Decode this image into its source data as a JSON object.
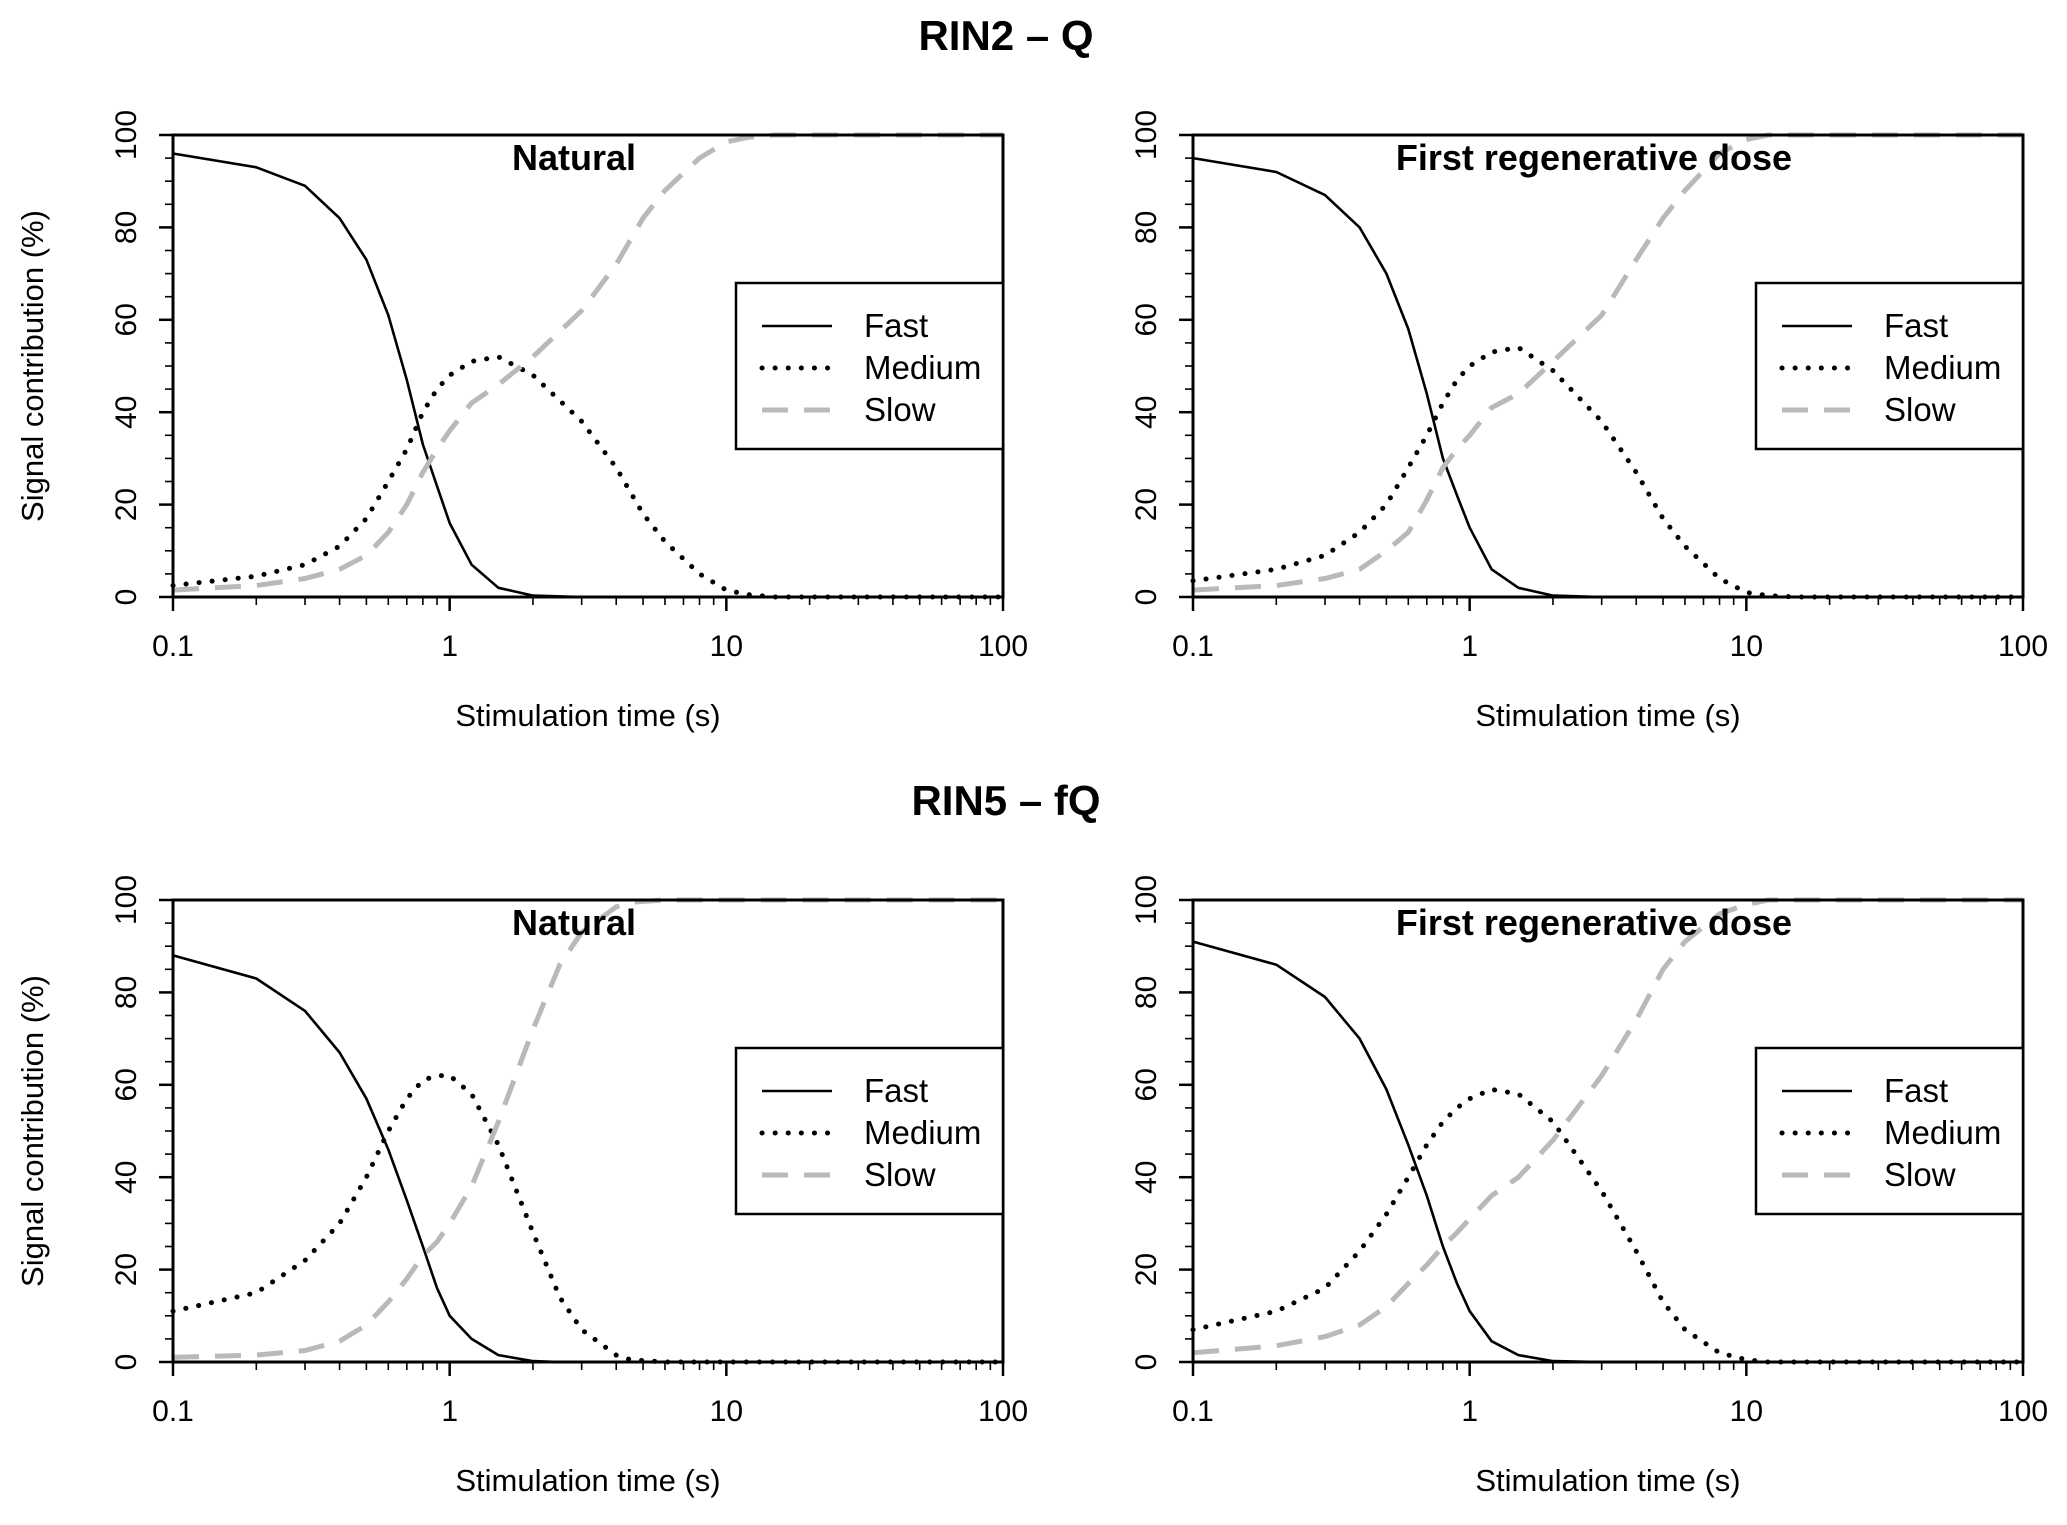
{
  "groups": [
    {
      "title": "RIN2 – Q"
    },
    {
      "title": "RIN5 – fQ"
    }
  ],
  "colors": {
    "fast": "#000000",
    "medium": "#000000",
    "slow": "#b9b9b9"
  },
  "chart_data": [
    {
      "type": "line",
      "group": 0,
      "title": "Natural",
      "xlabel": "Stimulation time (s)",
      "ylabel": "Signal contribution (%)",
      "xscale": "log",
      "xlim": [
        0.1,
        100
      ],
      "ylim": [
        0,
        100
      ],
      "xticks": [
        0.1,
        1,
        10,
        100
      ],
      "xtick_labels": [
        "0.1",
        "1",
        "10",
        "100"
      ],
      "yticks": [
        0,
        20,
        40,
        60,
        80,
        100
      ],
      "ytick_labels": [
        "0",
        "20",
        "40",
        "60",
        "80",
        "100"
      ],
      "legend": {
        "position": "right",
        "entries": [
          "Fast",
          "Medium",
          "Slow"
        ]
      },
      "x": [
        0.1,
        0.2,
        0.3,
        0.4,
        0.5,
        0.6,
        0.7,
        0.8,
        0.9,
        1,
        1.2,
        1.5,
        2,
        3,
        4,
        5,
        6,
        8,
        10,
        12,
        15,
        20,
        30,
        50,
        100
      ],
      "series": [
        {
          "name": "Fast",
          "values": [
            96,
            93,
            89,
            82,
            73,
            61,
            47,
            33,
            24,
            16,
            7,
            2,
            0.3,
            0,
            0,
            0,
            0,
            0,
            0,
            0,
            0,
            0,
            0,
            0,
            0
          ]
        },
        {
          "name": "Medium",
          "values": [
            2.5,
            4.5,
            7,
            11,
            17,
            25,
            32,
            40,
            45,
            48,
            51,
            52,
            48,
            38,
            28,
            18,
            12,
            5,
            1.5,
            0.5,
            0,
            0,
            0,
            0,
            0
          ]
        },
        {
          "name": "Slow",
          "values": [
            1.5,
            2.5,
            4,
            6,
            9,
            14,
            20,
            27,
            32,
            36,
            42,
            46,
            52,
            62,
            72,
            82,
            88,
            95,
            98.5,
            99.5,
            100,
            100,
            100,
            100,
            100
          ]
        }
      ]
    },
    {
      "type": "line",
      "group": 0,
      "title": "First regenerative dose",
      "xlabel": "Stimulation time (s)",
      "ylabel": "Signal contribution (%)",
      "xscale": "log",
      "xlim": [
        0.1,
        100
      ],
      "ylim": [
        0,
        100
      ],
      "xticks": [
        0.1,
        1,
        10,
        100
      ],
      "xtick_labels": [
        "0.1",
        "1",
        "10",
        "100"
      ],
      "yticks": [
        0,
        20,
        40,
        60,
        80,
        100
      ],
      "ytick_labels": [
        "0",
        "20",
        "40",
        "60",
        "80",
        "100"
      ],
      "legend": {
        "position": "right",
        "entries": [
          "Fast",
          "Medium",
          "Slow"
        ]
      },
      "x": [
        0.1,
        0.2,
        0.3,
        0.4,
        0.5,
        0.6,
        0.7,
        0.8,
        0.9,
        1,
        1.2,
        1.5,
        2,
        3,
        4,
        5,
        6,
        8,
        10,
        12,
        15,
        20,
        30,
        50,
        100
      ],
      "series": [
        {
          "name": "Fast",
          "values": [
            95,
            92,
            87,
            80,
            70,
            58,
            44,
            30,
            22,
            15,
            6,
            2,
            0.3,
            0,
            0,
            0,
            0,
            0,
            0,
            0,
            0,
            0,
            0,
            0,
            0
          ]
        },
        {
          "name": "Medium",
          "values": [
            3.5,
            6,
            9,
            14,
            20,
            28,
            35,
            42,
            47,
            50,
            53,
            54,
            49,
            38,
            27,
            17,
            11,
            4,
            1,
            0.3,
            0,
            0,
            0,
            0,
            0
          ]
        },
        {
          "name": "Slow",
          "values": [
            1.5,
            2.5,
            4,
            6,
            10,
            14,
            21,
            28,
            32,
            35,
            41,
            44,
            51,
            61,
            73,
            82,
            88,
            96,
            99,
            100,
            100,
            100,
            100,
            100,
            100
          ]
        }
      ]
    },
    {
      "type": "line",
      "group": 1,
      "title": "Natural",
      "xlabel": "Stimulation time (s)",
      "ylabel": "Signal contribution (%)",
      "xscale": "log",
      "xlim": [
        0.1,
        100
      ],
      "ylim": [
        0,
        100
      ],
      "xticks": [
        0.1,
        1,
        10,
        100
      ],
      "xtick_labels": [
        "0.1",
        "1",
        "10",
        "100"
      ],
      "yticks": [
        0,
        20,
        40,
        60,
        80,
        100
      ],
      "ytick_labels": [
        "0",
        "20",
        "40",
        "60",
        "80",
        "100"
      ],
      "legend": {
        "position": "right",
        "entries": [
          "Fast",
          "Medium",
          "Slow"
        ]
      },
      "x": [
        0.1,
        0.2,
        0.3,
        0.4,
        0.5,
        0.6,
        0.7,
        0.8,
        0.9,
        1,
        1.2,
        1.5,
        2,
        2.5,
        3,
        4,
        4.5,
        6,
        8,
        10,
        20,
        50,
        100
      ],
      "series": [
        {
          "name": "Fast",
          "values": [
            88,
            83,
            76,
            67,
            57,
            46,
            35,
            25,
            16,
            10,
            5,
            1.5,
            0.2,
            0,
            0,
            0,
            0,
            0,
            0,
            0,
            0,
            0,
            0
          ]
        },
        {
          "name": "Medium",
          "values": [
            11,
            15,
            22,
            30,
            40,
            50,
            57,
            61,
            62,
            62,
            58,
            47,
            28,
            14,
            7,
            1.5,
            0.5,
            0,
            0,
            0,
            0,
            0,
            0
          ]
        },
        {
          "name": "Slow",
          "values": [
            1,
            1.5,
            2.5,
            4.5,
            8,
            13,
            18,
            23,
            26,
            30,
            38,
            52,
            72,
            86,
            93,
            98.5,
            99.5,
            100,
            100,
            100,
            100,
            100,
            100
          ]
        }
      ]
    },
    {
      "type": "line",
      "group": 1,
      "title": "First regenerative dose",
      "xlabel": "Stimulation time (s)",
      "ylabel": "Signal contribution (%)",
      "xscale": "log",
      "xlim": [
        0.1,
        100
      ],
      "ylim": [
        0,
        100
      ],
      "xticks": [
        0.1,
        1,
        10,
        100
      ],
      "xtick_labels": [
        "0.1",
        "1",
        "10",
        "100"
      ],
      "yticks": [
        0,
        20,
        40,
        60,
        80,
        100
      ],
      "ytick_labels": [
        "0",
        "20",
        "40",
        "60",
        "80",
        "100"
      ],
      "legend": {
        "position": "right",
        "entries": [
          "Fast",
          "Medium",
          "Slow"
        ]
      },
      "x": [
        0.1,
        0.2,
        0.3,
        0.4,
        0.5,
        0.6,
        0.7,
        0.8,
        0.9,
        1,
        1.2,
        1.5,
        2,
        3,
        4,
        5,
        6,
        8,
        10,
        12,
        15,
        20,
        30,
        50,
        100
      ],
      "series": [
        {
          "name": "Fast",
          "values": [
            91,
            86,
            79,
            70,
            59,
            47,
            36,
            25,
            17,
            11,
            4.5,
            1.5,
            0.2,
            0,
            0,
            0,
            0,
            0,
            0,
            0,
            0,
            0,
            0,
            0,
            0
          ]
        },
        {
          "name": "Medium",
          "values": [
            7,
            11,
            16,
            24,
            32,
            40,
            47,
            52,
            55,
            57,
            59,
            58,
            52,
            37,
            24,
            13,
            7,
            2,
            0.5,
            0,
            0,
            0,
            0,
            0,
            0
          ]
        },
        {
          "name": "Slow",
          "values": [
            2,
            3.5,
            5.5,
            8,
            12,
            17,
            21,
            25,
            28,
            31,
            36,
            40,
            48,
            62,
            74,
            85,
            91,
            97,
            99,
            100,
            100,
            100,
            100,
            100,
            100
          ]
        }
      ]
    }
  ]
}
